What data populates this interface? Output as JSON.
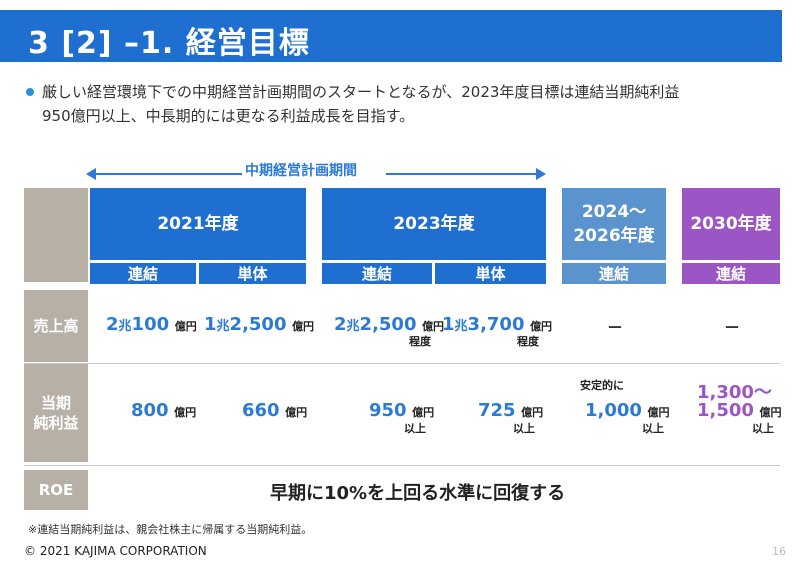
{
  "header": {
    "title": "3 [2] –1. 経営目標"
  },
  "description": {
    "line1": "厳しい経営環境下での中期経営計画期間のスタートとなるが、2023年度目標は連結当期純利益",
    "line2": "950億円以上、中長期的には更なる利益成長を目指す。"
  },
  "period_label": "中期経営計画期間",
  "columns": {
    "y2021": "2021年度",
    "y2023": "2023年度",
    "y2024_l1": "2024〜",
    "y2024_l2": "2026年度",
    "y2030": "2030年度",
    "consolidated": "連結",
    "standalone": "単体"
  },
  "rows": {
    "sales": "売上高",
    "profit_l1": "当期",
    "profit_l2": "純利益",
    "roe": "ROE"
  },
  "sales": {
    "c2021": {
      "a": "2",
      "b": "兆",
      "c": "100",
      "unit": "億円"
    },
    "s2021": {
      "a": "1",
      "b": "兆",
      "c": "2,500",
      "unit": "億円"
    },
    "c2023": {
      "a": "2",
      "b": "兆",
      "c": "2,500",
      "unit": "億円",
      "note": "程度"
    },
    "s2023": {
      "a": "1",
      "b": "兆",
      "c": "3,700",
      "unit": "億円",
      "note": "程度"
    },
    "c2024": "－",
    "c2030": "－"
  },
  "profit": {
    "c2021": {
      "v": "800",
      "unit": "億円"
    },
    "s2021": {
      "v": "660",
      "unit": "億円"
    },
    "c2023": {
      "v": "950",
      "unit": "億円",
      "note": "以上"
    },
    "s2023": {
      "v": "725",
      "unit": "億円",
      "note": "以上"
    },
    "c2024": {
      "pre": "安定的に",
      "v": "1,000",
      "unit": "億円",
      "note": "以上"
    },
    "c2030": {
      "v1": "1,300〜",
      "v2": "1,500",
      "unit": "億円",
      "note": "以上"
    }
  },
  "roe_text": "早期に10%を上回る水準に回復する",
  "footnote": "※連結当期純利益は、親会社株主に帰属する当期純利益。",
  "copyright": "© 2021 KAJIMA CORPORATION",
  "page_number": "16",
  "colors": {
    "blue": "#1f6fd1",
    "light_blue": "#5b93cf",
    "purple": "#9b55c4",
    "gray": "#b7b0a6"
  }
}
